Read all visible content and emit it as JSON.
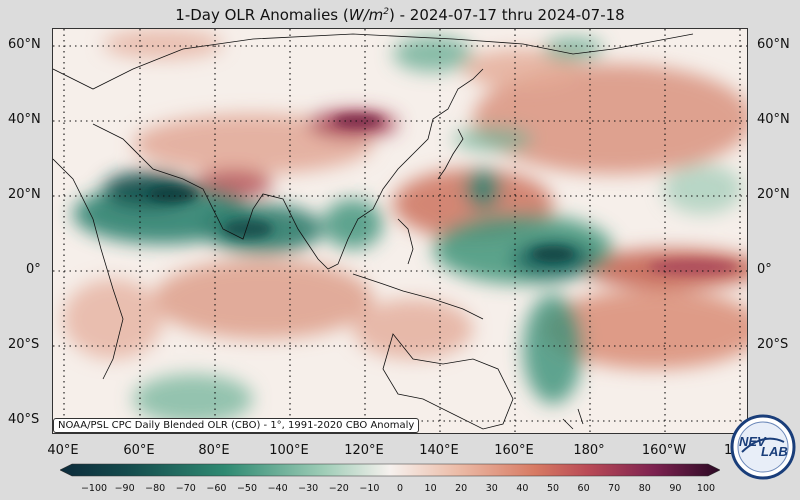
{
  "title": {
    "prefix": "1-Day OLR Anomalies (",
    "unit_base": "W/m",
    "unit_exp": "2",
    "suffix": ") - 2024-07-17 thru 2024-07-18"
  },
  "lat_labels": [
    "60°N",
    "40°N",
    "20°N",
    "0°",
    "20°S",
    "40°S"
  ],
  "lon_labels": [
    "40°E",
    "60°E",
    "80°E",
    "100°E",
    "120°E",
    "140°E",
    "160°E",
    "180°",
    "160°W",
    "140°W"
  ],
  "credit": "NOAA/PSL CPC Daily Blended OLR (CBO) - 1°, 1991-2020 CBO Anomaly",
  "colorbar": {
    "ticks": [
      "−100",
      "−90",
      "−80",
      "−70",
      "−60",
      "−50",
      "−40",
      "−30",
      "−20",
      "−10",
      "0",
      "10",
      "20",
      "30",
      "40",
      "50",
      "60",
      "70",
      "80",
      "90",
      "100"
    ],
    "min": -100,
    "max": 100
  },
  "logo": {
    "text": "NEV",
    "text2": "LAB"
  },
  "colors": {
    "negative_dark": "#0d3b3b",
    "negative": "#2f8a72",
    "neutral": "#f6efea",
    "positive": "#d77a63",
    "positive_dark": "#3a0a2e"
  }
}
